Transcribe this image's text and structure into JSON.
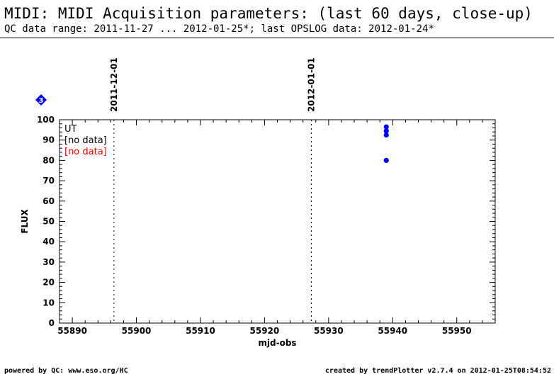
{
  "header": {
    "title": "MIDI: MIDI Acquisition parameters: (last 60 days, close-up)",
    "subtitle": "QC data range: 2011-11-27 ... 2012-01-25*; last OPSLOG data: 2012-01-24*"
  },
  "footer": {
    "left": "powered by QC: www.eso.org/HC",
    "right": "created by trendPlotter v2.7.4 on 2012-01-25T08:54:52"
  },
  "marker_badge": {
    "label": "3",
    "color": "#0000ff"
  },
  "chart_data": {
    "type": "scatter",
    "xlabel": "mjd-obs",
    "ylabel": "FLUX",
    "xlim": [
      55888,
      55956
    ],
    "ylim": [
      0,
      100
    ],
    "x_ticks": [
      55890,
      55900,
      55910,
      55920,
      55930,
      55940,
      55950
    ],
    "y_ticks": [
      0,
      10,
      20,
      30,
      40,
      50,
      60,
      70,
      80,
      90,
      100
    ],
    "date_markers": [
      {
        "x": 55896.5,
        "label": "2011-12-01"
      },
      {
        "x": 55927.3,
        "label": "2012-01-01"
      }
    ],
    "legend": [
      {
        "text": "UT",
        "color": "#000000"
      },
      {
        "text": "[no data]",
        "color": "#000000"
      },
      {
        "text": "[no data]",
        "color": "#ff0000"
      }
    ],
    "legend_position": "top-left",
    "series": [
      {
        "color": "#0000ff",
        "points": [
          {
            "x": 55939.0,
            "y": 96.5
          },
          {
            "x": 55939.0,
            "y": 94.5
          },
          {
            "x": 55939.0,
            "y": 92.5
          },
          {
            "x": 55939.0,
            "y": 80.0
          }
        ]
      }
    ]
  }
}
